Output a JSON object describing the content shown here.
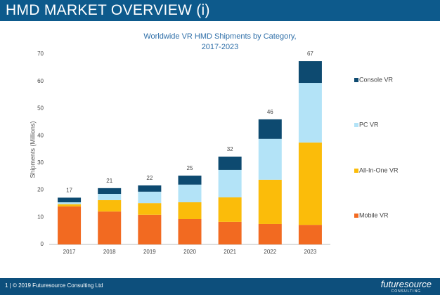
{
  "header": {
    "title": "HMD MARKET OVERVIEW (i)"
  },
  "chart_data": {
    "type": "stacked_bar",
    "title": [
      "Worldwide VR HMD Shipments by Category,",
      "2017-2023"
    ],
    "y_label": "Shipments (Millions)",
    "categories": [
      "2017",
      "2018",
      "2019",
      "2020",
      "2021",
      "2022",
      "2023"
    ],
    "series": [
      {
        "name": "Mobile VR",
        "color": "#f26a21",
        "values": [
          14,
          12.1,
          10.9,
          9.3,
          8.3,
          7.5,
          7.2
        ]
      },
      {
        "name": "All-In-One VR",
        "color": "#fbbc0a",
        "values": [
          0.8,
          4.2,
          4.3,
          6.2,
          9.0,
          16.3,
          30.3
        ]
      },
      {
        "name": "PC VR",
        "color": "#b3e3f7",
        "values": [
          0.7,
          2.3,
          4.2,
          6.5,
          10.1,
          15.0,
          21.9
        ]
      },
      {
        "name": "Console VR",
        "color": "#0d4a70",
        "values": [
          1.7,
          2.1,
          2.3,
          3.3,
          4.9,
          7.2,
          8.0
        ]
      }
    ],
    "totals": [
      17,
      21,
      22,
      25,
      32,
      46,
      67
    ],
    "ylim": [
      0,
      70
    ],
    "yticks": [
      0,
      10,
      20,
      30,
      40,
      50,
      60,
      70
    ],
    "grid": false
  },
  "footer": {
    "text": "1 | © 2019 Futuresource Consulting Ltd",
    "logo": "futuresource",
    "logo_sub": "CONSULTING"
  }
}
